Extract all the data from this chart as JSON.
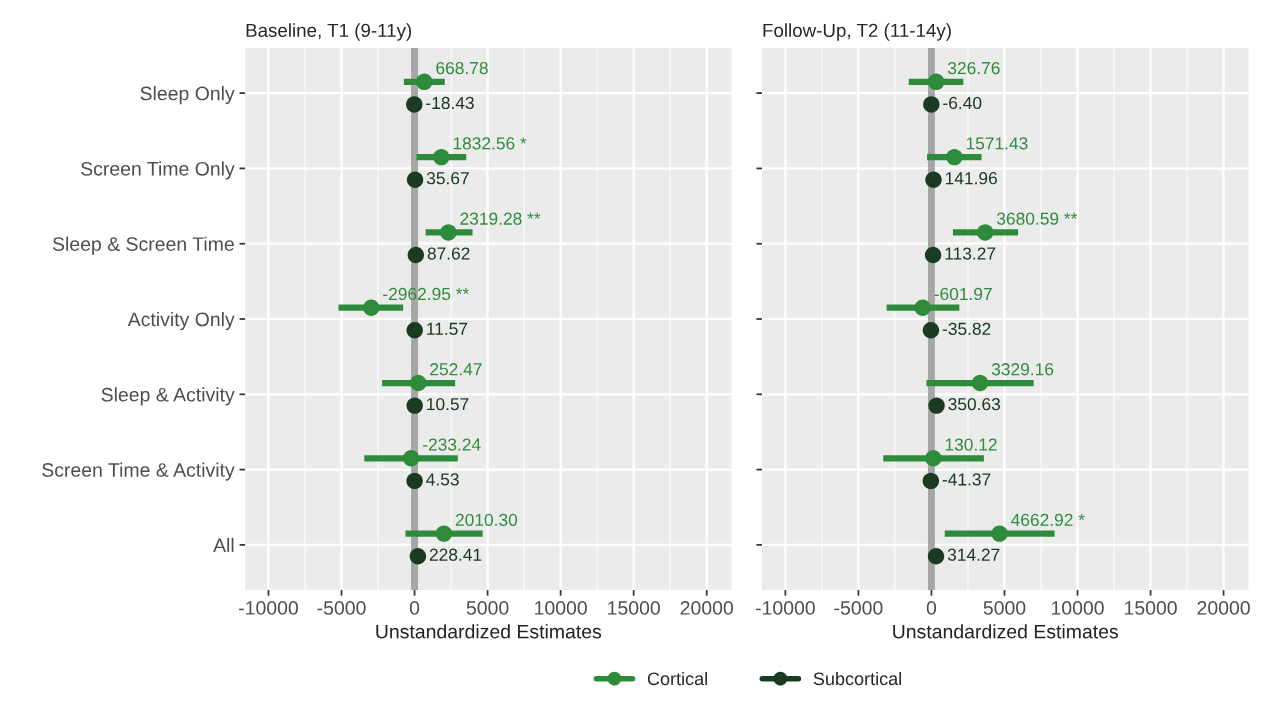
{
  "chart_data": [
    {
      "type": "scatter",
      "orientation": "horizontal",
      "title": "Baseline, T1 (9-11y)",
      "xlabel": "Unstandardized Estimates",
      "categories": [
        "Sleep Only",
        "Screen Time Only",
        "Sleep & Screen Time",
        "Activity Only",
        "Sleep & Activity",
        "Screen Time & Activity",
        "All"
      ],
      "series": [
        {
          "name": "Cortical",
          "color": "#2e8b3c",
          "values": [
            668.78,
            1832.56,
            2319.28,
            -2962.95,
            252.47,
            -233.24,
            2010.3
          ],
          "errors": [
            [
              -730,
              2070
            ],
            [
              130,
              3540
            ],
            [
              760,
              3970
            ],
            [
              -5210,
              -780
            ],
            [
              -2220,
              2780
            ],
            [
              -3440,
              2960
            ],
            [
              -620,
              4660
            ]
          ],
          "value_labels": [
            "668.78",
            "1832.56 *",
            "2319.28 **",
            "-2962.95 **",
            "252.47",
            "-233.24",
            "2010.30"
          ]
        },
        {
          "name": "Subcortical",
          "color": "#1b3a22",
          "values": [
            -18.43,
            35.67,
            87.62,
            11.57,
            10.57,
            4.53,
            228.41
          ],
          "value_labels": [
            "-18.43",
            "35.67",
            "87.62",
            "11.57",
            "10.57",
            "4.53",
            "228.41"
          ]
        }
      ],
      "xlim": [
        -11600,
        21700
      ],
      "xticks": [
        -10000,
        -5000,
        0,
        5000,
        10000,
        15000,
        20000
      ],
      "ref_lines": [
        {
          "axis": "x",
          "value": 0,
          "color": "#a6a6a6"
        }
      ],
      "grid": true,
      "legend": "bottom"
    },
    {
      "type": "scatter",
      "orientation": "horizontal",
      "title": "Follow-Up, T2 (11-14y)",
      "xlabel": "Unstandardized Estimates",
      "categories": [
        null,
        null,
        null,
        null,
        null,
        null,
        null
      ],
      "series": [
        {
          "color": "#2e8b3c",
          "values": [
            326.76,
            1571.43,
            3680.59,
            -601.97,
            3329.16,
            130.12,
            4662.92
          ],
          "errors": [
            [
              -1550,
              2180
            ],
            [
              -300,
              3430
            ],
            [
              1470,
              5930
            ],
            [
              -3070,
              1910
            ],
            [
              -340,
              7000
            ],
            [
              -3300,
              3590
            ],
            [
              910,
              8430
            ]
          ],
          "value_labels": [
            "326.76",
            "1571.43",
            "3680.59 **",
            "-601.97",
            "3329.16",
            "130.12",
            "4662.92 *"
          ]
        },
        {
          "color": "#1b3a22",
          "values": [
            -6.4,
            141.96,
            113.27,
            -35.82,
            350.63,
            -41.37,
            314.27
          ],
          "value_labels": [
            "-6.40",
            "141.96",
            "113.27",
            "-35.82",
            "350.63",
            "-41.37",
            "314.27"
          ]
        }
      ],
      "xlim": [
        -11600,
        21700
      ],
      "xticks": [
        -10000,
        -5000,
        0,
        5000,
        10000,
        15000,
        20000
      ],
      "ref_lines": [
        {
          "axis": "x",
          "value": 0,
          "color": "#a6a6a6"
        }
      ],
      "grid": true,
      "tick_labels": "x"
    }
  ]
}
